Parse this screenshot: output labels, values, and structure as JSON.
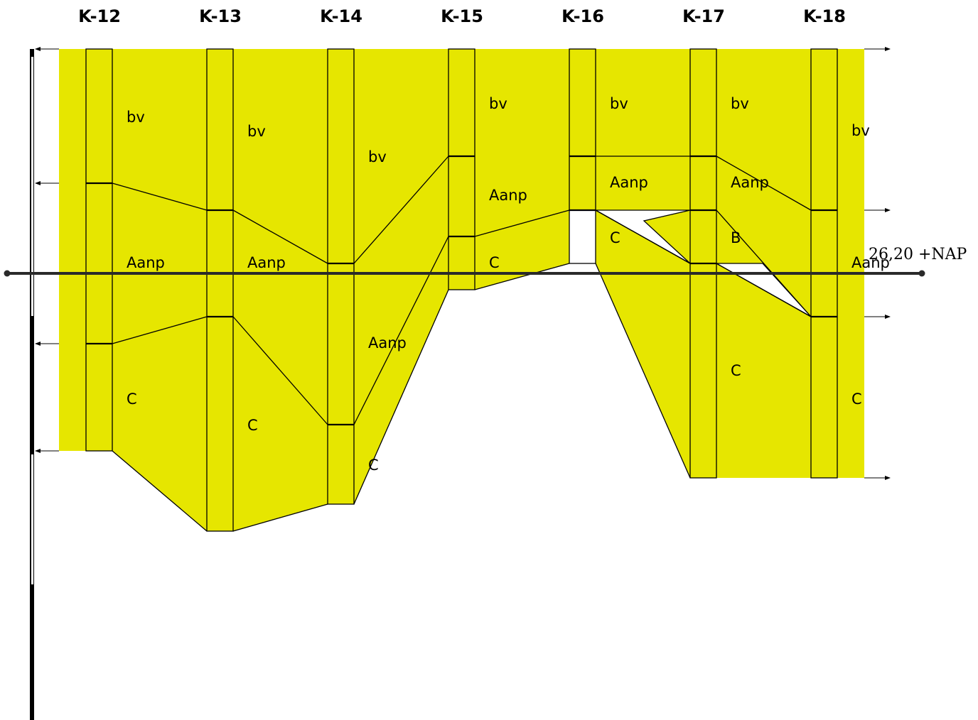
{
  "colors": {
    "soil_fill": "#e6e600",
    "line": "#000000",
    "reference_line": "#2a2a2a",
    "background": "#ffffff"
  },
  "boreholes": [
    {
      "name": "K-12"
    },
    {
      "name": "K-13"
    },
    {
      "name": "K-14"
    },
    {
      "name": "K-15"
    },
    {
      "name": "K-16"
    },
    {
      "name": "K-17"
    },
    {
      "name": "K-18"
    }
  ],
  "layer_labels": {
    "k12": {
      "bv": "bv",
      "aanp": "Aanp",
      "c": "C"
    },
    "k13": {
      "bv": "bv",
      "aanp": "Aanp",
      "c": "C"
    },
    "k14": {
      "bv": "bv",
      "aanp": "Aanp",
      "c": "C"
    },
    "k15": {
      "bv": "bv",
      "aanp": "Aanp",
      "c": "C"
    },
    "k16": {
      "bv": "bv",
      "aanp": "Aanp",
      "c": "C"
    },
    "k17": {
      "bv": "bv",
      "aanp": "Aanp",
      "b": "B",
      "c": "C"
    },
    "k18": {
      "bv": "bv",
      "aanp": "Aanp",
      "c": "C"
    }
  },
  "reference_level": {
    "label": "26,20 +NAP"
  },
  "icons": {
    "left_arrow": "arrow-left-icon",
    "right_arrow": "arrow-right-icon",
    "endpoint": "dot-icon"
  }
}
